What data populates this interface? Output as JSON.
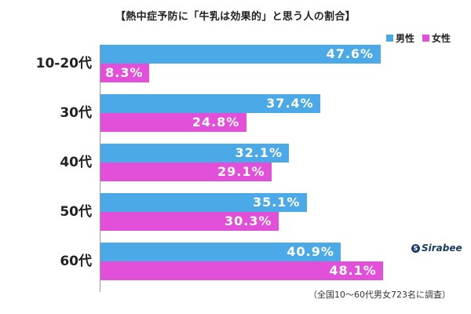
{
  "chart_data": {
    "type": "bar",
    "orientation": "horizontal",
    "title": "【熱中症予防に「牛乳は効果的」と思う人の割合】",
    "categories": [
      "10-20代",
      "30代",
      "40代",
      "50代",
      "60代"
    ],
    "series": [
      {
        "name": "男性",
        "color": "#4aa9e6",
        "values": [
          47.6,
          37.4,
          32.1,
          35.1,
          40.9
        ]
      },
      {
        "name": "女性",
        "color": "#e24fd8",
        "values": [
          8.3,
          24.8,
          29.1,
          30.3,
          48.1
        ]
      }
    ],
    "value_suffix": "%",
    "xlim": [
      0,
      57.4
    ],
    "legend_position": "top-right"
  },
  "footnote": "（全国10〜60代男女723名に調査）",
  "brand": {
    "icon": "S",
    "name": "Sirabee"
  }
}
